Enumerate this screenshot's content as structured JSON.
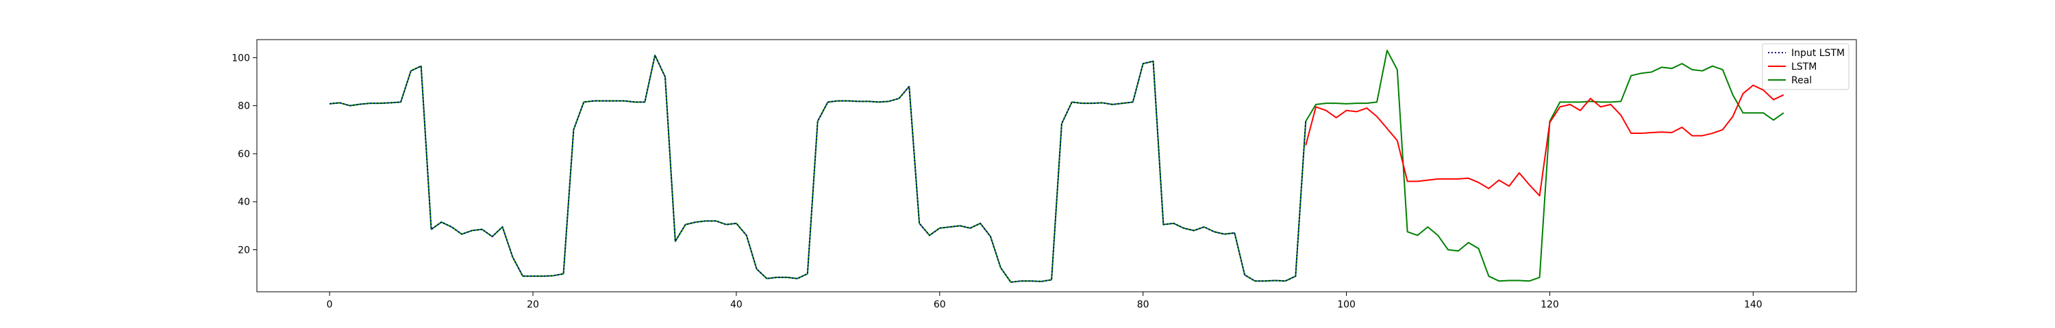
{
  "chart_data": {
    "type": "line",
    "title": "",
    "xlabel": "",
    "ylabel": "",
    "xlim": [
      -7.15,
      150.15
    ],
    "ylim": [
      2.5,
      107.5
    ],
    "xticks": [
      0,
      20,
      40,
      60,
      80,
      100,
      120,
      140
    ],
    "yticks": [
      20,
      40,
      60,
      80,
      100
    ],
    "grid": false,
    "legend_position": "top-right",
    "series": [
      {
        "name": "Input LSTM",
        "color": "#000080",
        "style": "dotted",
        "x": [
          0,
          1,
          2,
          3,
          4,
          5,
          6,
          7,
          8,
          9,
          10,
          11,
          12,
          13,
          14,
          15,
          16,
          17,
          18,
          19,
          20,
          21,
          22,
          23,
          24,
          25,
          26,
          27,
          28,
          29,
          30,
          31,
          32,
          33,
          34,
          35,
          36,
          37,
          38,
          39,
          40,
          41,
          42,
          43,
          44,
          45,
          46,
          47,
          48,
          49,
          50,
          51,
          52,
          53,
          54,
          55,
          56,
          57,
          58,
          59,
          60,
          61,
          62,
          63,
          64,
          65,
          66,
          67,
          68,
          69,
          70,
          71,
          72,
          73,
          74,
          75,
          76,
          77,
          78,
          79,
          80,
          81,
          82,
          83,
          84,
          85,
          86,
          87,
          88,
          89,
          90,
          91,
          92,
          93,
          94,
          95,
          96
        ],
        "values": [
          80.8,
          81.2,
          80.0,
          80.6,
          81.0,
          81.0,
          81.2,
          81.5,
          94.5,
          96.5,
          28.5,
          31.5,
          29.5,
          26.5,
          28.0,
          28.5,
          25.5,
          29.5,
          17.0,
          9.0,
          9.0,
          9.0,
          9.2,
          10.0,
          70.0,
          81.5,
          82.0,
          82.0,
          82.0,
          82.0,
          81.5,
          81.5,
          101.0,
          92.0,
          23.5,
          30.5,
          31.5,
          32.0,
          32.0,
          30.5,
          31.0,
          26.0,
          12.0,
          8.0,
          8.5,
          8.5,
          8.0,
          10.0,
          73.5,
          81.5,
          82.0,
          82.0,
          81.8,
          81.8,
          81.5,
          81.8,
          83.0,
          88.0,
          31.0,
          26.0,
          29.0,
          29.5,
          30.0,
          29.0,
          31.0,
          25.5,
          12.5,
          6.5,
          7.0,
          7.0,
          6.8,
          7.5,
          72.5,
          81.5,
          81.0,
          81.0,
          81.2,
          80.5,
          81.0,
          81.5,
          97.5,
          98.5,
          30.5,
          31.0,
          29.0,
          28.0,
          29.5,
          27.5,
          26.5,
          27.0,
          9.5,
          7.0,
          7.0,
          7.2,
          7.0,
          9.0,
          73.5
        ]
      },
      {
        "name": "LSTM",
        "color": "#ff0000",
        "style": "solid",
        "x": [
          96,
          97,
          98,
          99,
          100,
          101,
          102,
          103,
          104,
          105,
          106,
          107,
          108,
          109,
          110,
          111,
          112,
          113,
          114,
          115,
          116,
          117,
          118,
          119,
          120,
          121,
          122,
          123,
          124,
          125,
          126,
          127,
          128,
          129,
          130,
          131,
          132,
          133,
          134,
          135,
          136,
          137,
          138,
          139,
          140,
          141,
          142,
          143
        ],
        "values": [
          63.5,
          79.5,
          78.0,
          75.0,
          78.0,
          77.5,
          79.0,
          75.5,
          70.5,
          65.5,
          48.5,
          48.5,
          49.0,
          49.5,
          49.5,
          49.5,
          49.8,
          48.0,
          45.5,
          49.0,
          46.5,
          52.0,
          47.0,
          42.5,
          73.0,
          79.5,
          80.5,
          78.0,
          83.0,
          79.5,
          80.5,
          76.0,
          68.5,
          68.5,
          68.8,
          69.0,
          68.8,
          71.0,
          67.5,
          67.5,
          68.5,
          70.0,
          75.5,
          85.0,
          88.5,
          86.5,
          82.5,
          84.5
        ]
      },
      {
        "name": "Real",
        "color": "#008000",
        "style": "solid",
        "x": [
          0,
          1,
          2,
          3,
          4,
          5,
          6,
          7,
          8,
          9,
          10,
          11,
          12,
          13,
          14,
          15,
          16,
          17,
          18,
          19,
          20,
          21,
          22,
          23,
          24,
          25,
          26,
          27,
          28,
          29,
          30,
          31,
          32,
          33,
          34,
          35,
          36,
          37,
          38,
          39,
          40,
          41,
          42,
          43,
          44,
          45,
          46,
          47,
          48,
          49,
          50,
          51,
          52,
          53,
          54,
          55,
          56,
          57,
          58,
          59,
          60,
          61,
          62,
          63,
          64,
          65,
          66,
          67,
          68,
          69,
          70,
          71,
          72,
          73,
          74,
          75,
          76,
          77,
          78,
          79,
          80,
          81,
          82,
          83,
          84,
          85,
          86,
          87,
          88,
          89,
          90,
          91,
          92,
          93,
          94,
          95,
          96,
          97,
          98,
          99,
          100,
          101,
          102,
          103,
          104,
          105,
          106,
          107,
          108,
          109,
          110,
          111,
          112,
          113,
          114,
          115,
          116,
          117,
          118,
          119,
          120,
          121,
          122,
          123,
          124,
          125,
          126,
          127,
          128,
          129,
          130,
          131,
          132,
          133,
          134,
          135,
          136,
          137,
          138,
          139,
          140,
          141,
          142,
          143
        ],
        "values": [
          80.8,
          81.2,
          80.0,
          80.6,
          81.0,
          81.0,
          81.2,
          81.5,
          94.5,
          96.5,
          28.5,
          31.5,
          29.5,
          26.5,
          28.0,
          28.5,
          25.5,
          29.5,
          17.0,
          9.0,
          9.0,
          9.0,
          9.2,
          10.0,
          70.0,
          81.5,
          82.0,
          82.0,
          82.0,
          82.0,
          81.5,
          81.5,
          101.0,
          92.0,
          23.5,
          30.5,
          31.5,
          32.0,
          32.0,
          30.5,
          31.0,
          26.0,
          12.0,
          8.0,
          8.5,
          8.5,
          8.0,
          10.0,
          73.5,
          81.5,
          82.0,
          82.0,
          81.8,
          81.8,
          81.5,
          81.8,
          83.0,
          88.0,
          31.0,
          26.0,
          29.0,
          29.5,
          30.0,
          29.0,
          31.0,
          25.5,
          12.5,
          6.5,
          7.0,
          7.0,
          6.8,
          7.5,
          72.5,
          81.5,
          81.0,
          81.0,
          81.2,
          80.5,
          81.0,
          81.5,
          97.5,
          98.5,
          30.5,
          31.0,
          29.0,
          28.0,
          29.5,
          27.5,
          26.5,
          27.0,
          9.5,
          7.0,
          7.0,
          7.2,
          7.0,
          9.0,
          73.5,
          80.5,
          81.0,
          81.0,
          80.8,
          81.0,
          81.0,
          81.5,
          103.0,
          95.0,
          27.5,
          26.0,
          29.5,
          26.0,
          20.0,
          19.5,
          23.0,
          20.5,
          9.0,
          7.0,
          7.2,
          7.2,
          7.0,
          8.5,
          73.5,
          81.5,
          81.5,
          81.5,
          81.8,
          81.5,
          81.5,
          81.8,
          92.5,
          93.5,
          94.0,
          96.0,
          95.5,
          97.5,
          95.0,
          94.5,
          96.5,
          95.0,
          84.5,
          77.0,
          77.0,
          77.0,
          74.0,
          77.0
        ]
      }
    ]
  }
}
